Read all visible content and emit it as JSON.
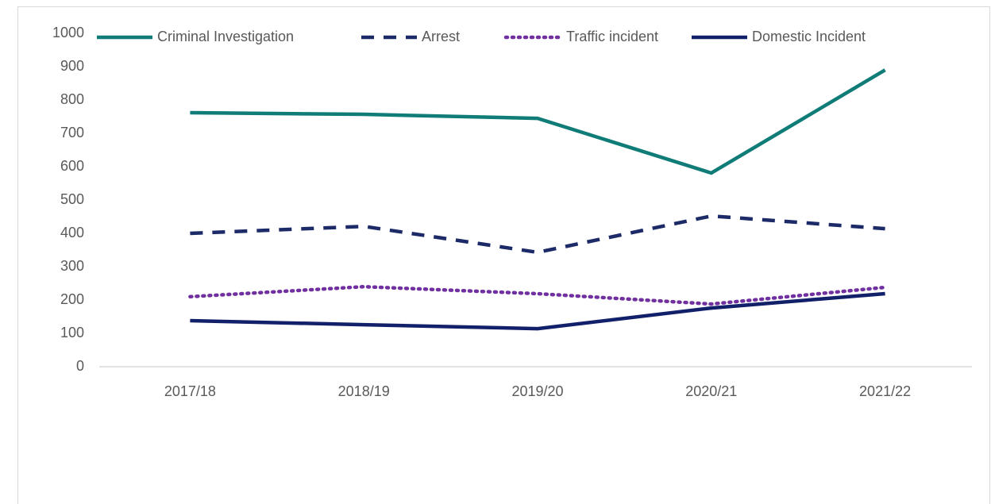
{
  "chart_data": {
    "type": "line",
    "categories": [
      "2017/18",
      "2018/19",
      "2019/20",
      "2020/21",
      "2021/22"
    ],
    "series": [
      {
        "name": "Criminal Investigation",
        "color": "#107c78",
        "dash": "solid",
        "values": [
          762,
          757,
          745,
          581,
          890
        ]
      },
      {
        "name": "Arrest",
        "color": "#1c2a68",
        "dash": "dashed",
        "values": [
          400,
          421,
          343,
          452,
          414
        ]
      },
      {
        "name": "Traffic incident",
        "color": "#7030a0",
        "dash": "dotted",
        "values": [
          210,
          240,
          219,
          188,
          238
        ]
      },
      {
        "name": "Domestic Incident",
        "color": "#12206a",
        "dash": "solid",
        "values": [
          138,
          126,
          114,
          176,
          219
        ]
      }
    ],
    "ylim": [
      0,
      1000
    ],
    "yticks": [
      0,
      100,
      200,
      300,
      400,
      500,
      600,
      700,
      800,
      900,
      1000
    ],
    "grid": false,
    "legend": "top"
  }
}
